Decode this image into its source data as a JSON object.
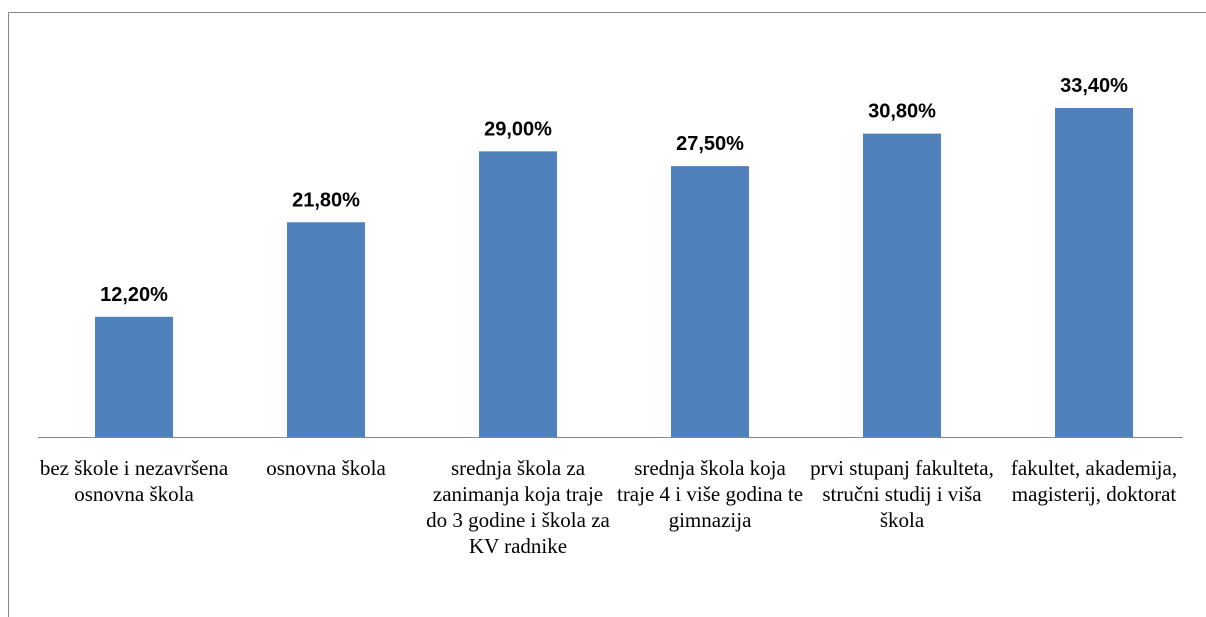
{
  "chart_data": {
    "type": "bar",
    "categories": [
      "bez škole i nezavršena osnovna škola",
      "osnovna škola",
      "srednja škola za zanimanja koja traje do 3 godine i škola za KV radnike",
      "srednja škola koja traje 4 i više godina te gimnazija",
      "prvi stupanj fakulteta, stručni studij i viša škola",
      "fakultet, akademija, magisterij, doktorat"
    ],
    "values": [
      12.2,
      21.8,
      29.0,
      27.5,
      30.8,
      33.4
    ],
    "value_labels": [
      "12,20%",
      "21,80%",
      "29,00%",
      "27,50%",
      "30,80%",
      "33,40%"
    ],
    "color": "#4f81bd"
  }
}
